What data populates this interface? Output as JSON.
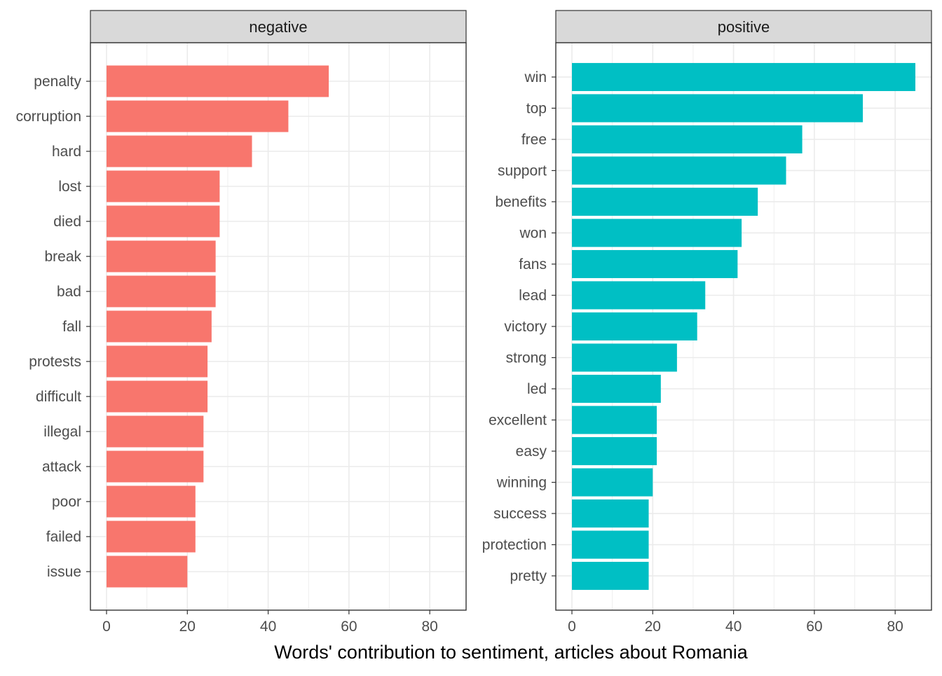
{
  "chart_data": {
    "type": "bar",
    "orientation": "horizontal",
    "xlabel": "Words' contribution to sentiment, articles about Romania",
    "xlim": [
      0,
      85
    ],
    "xticks": [
      0,
      20,
      40,
      60,
      80
    ],
    "grid": true,
    "panels": [
      {
        "name": "negative",
        "color": "#F8766D",
        "categories": [
          "penalty",
          "corruption",
          "hard",
          "lost",
          "died",
          "break",
          "bad",
          "fall",
          "protests",
          "difficult",
          "illegal",
          "attack",
          "poor",
          "failed",
          "issue"
        ],
        "values": [
          55,
          45,
          36,
          28,
          28,
          27,
          27,
          26,
          25,
          25,
          24,
          24,
          22,
          22,
          20
        ]
      },
      {
        "name": "positive",
        "color": "#00BFC4",
        "categories": [
          "win",
          "top",
          "free",
          "support",
          "benefits",
          "won",
          "fans",
          "lead",
          "victory",
          "strong",
          "led",
          "excellent",
          "easy",
          "winning",
          "success",
          "protection",
          "pretty"
        ],
        "values": [
          85,
          72,
          57,
          53,
          46,
          42,
          41,
          33,
          31,
          26,
          22,
          21,
          21,
          20,
          19,
          19,
          19
        ]
      }
    ]
  }
}
